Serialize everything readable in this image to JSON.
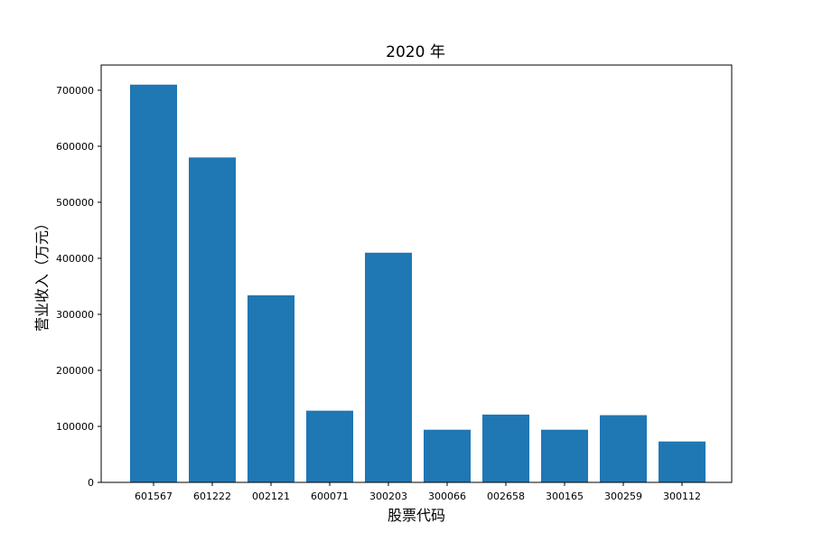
{
  "chart_data": {
    "type": "bar",
    "title": "2020 年",
    "xlabel": "股票代码",
    "ylabel": "营业收入（万元）",
    "categories": [
      "601567",
      "601222",
      "002121",
      "600071",
      "300203",
      "300066",
      "002658",
      "300165",
      "300259",
      "300112"
    ],
    "values": [
      710000,
      580000,
      334000,
      128000,
      410000,
      94000,
      121000,
      94000,
      120000,
      73000
    ],
    "ylim": [
      0,
      745000
    ],
    "yticks": [
      0,
      100000,
      200000,
      300000,
      400000,
      500000,
      600000,
      700000
    ],
    "ytick_labels": [
      "0",
      "100000",
      "200000",
      "300000",
      "400000",
      "500000",
      "600000",
      "700000"
    ],
    "grid": false,
    "bar_color": "#1f77b4"
  }
}
